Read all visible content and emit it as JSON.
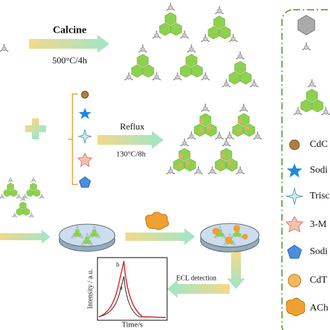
{
  "steps": [
    {
      "label": "Calcine",
      "condition": "500°C/4h"
    },
    {
      "label": "Reflux",
      "condition": "130°C/8h"
    },
    {
      "label": "ECL detection"
    }
  ],
  "plot": {
    "y_label": "Intensity / a.u.",
    "x_label": "Time/s",
    "curves": [
      "a",
      "b"
    ]
  },
  "legend": [
    "CdC",
    "Sodi",
    "Trisc",
    "3-M",
    "Sodi",
    "CdT",
    "ACh"
  ]
}
